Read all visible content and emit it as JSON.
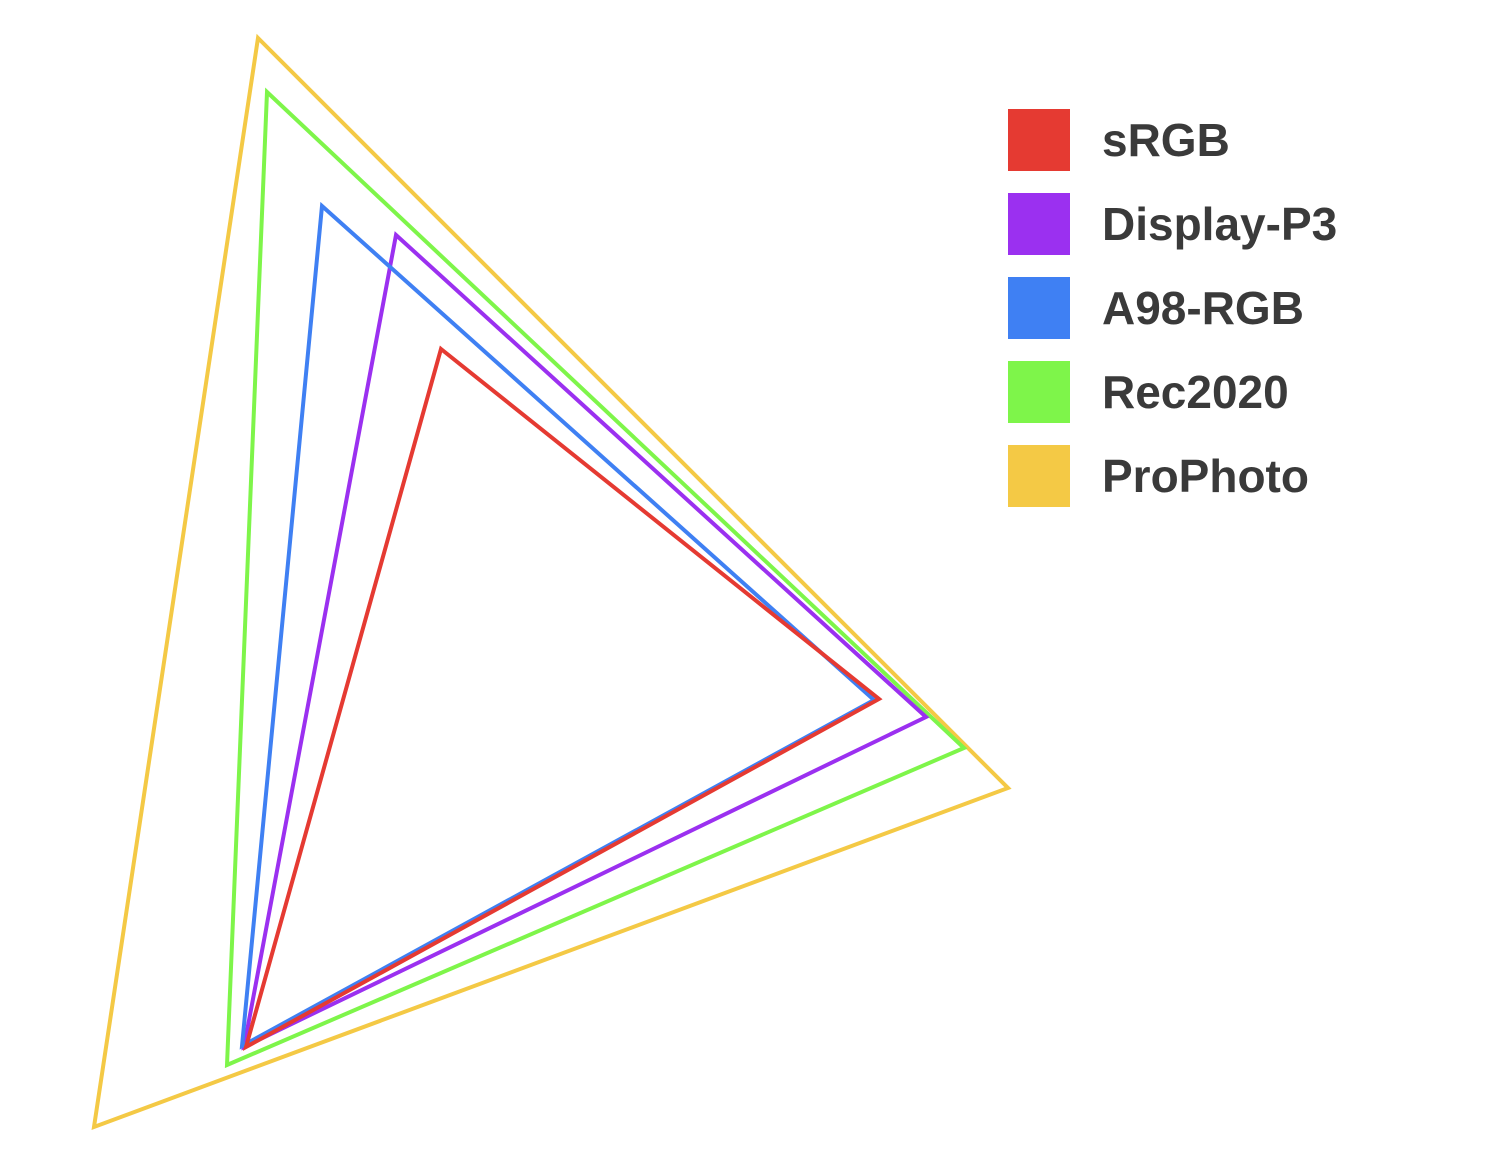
{
  "legend": [
    {
      "label": "sRGB",
      "color": "#e53a32",
      "shape": "red"
    },
    {
      "label": "Display-P3",
      "color": "#9b30f0",
      "shape": "purple"
    },
    {
      "label": "A98-RGB",
      "color": "#3f80f3",
      "shape": "blue"
    },
    {
      "label": "Rec2020",
      "color": "#7ef54a",
      "shape": "green"
    },
    {
      "label": "ProPhoto",
      "color": "#f4c945",
      "shape": "yellow"
    }
  ],
  "diagram": {
    "background": "#ffffff",
    "nested_triangles_draw_order": [
      "ProPhoto",
      "Rec2020",
      "Display-P3",
      "A98-RGB",
      "sRGB"
    ]
  }
}
